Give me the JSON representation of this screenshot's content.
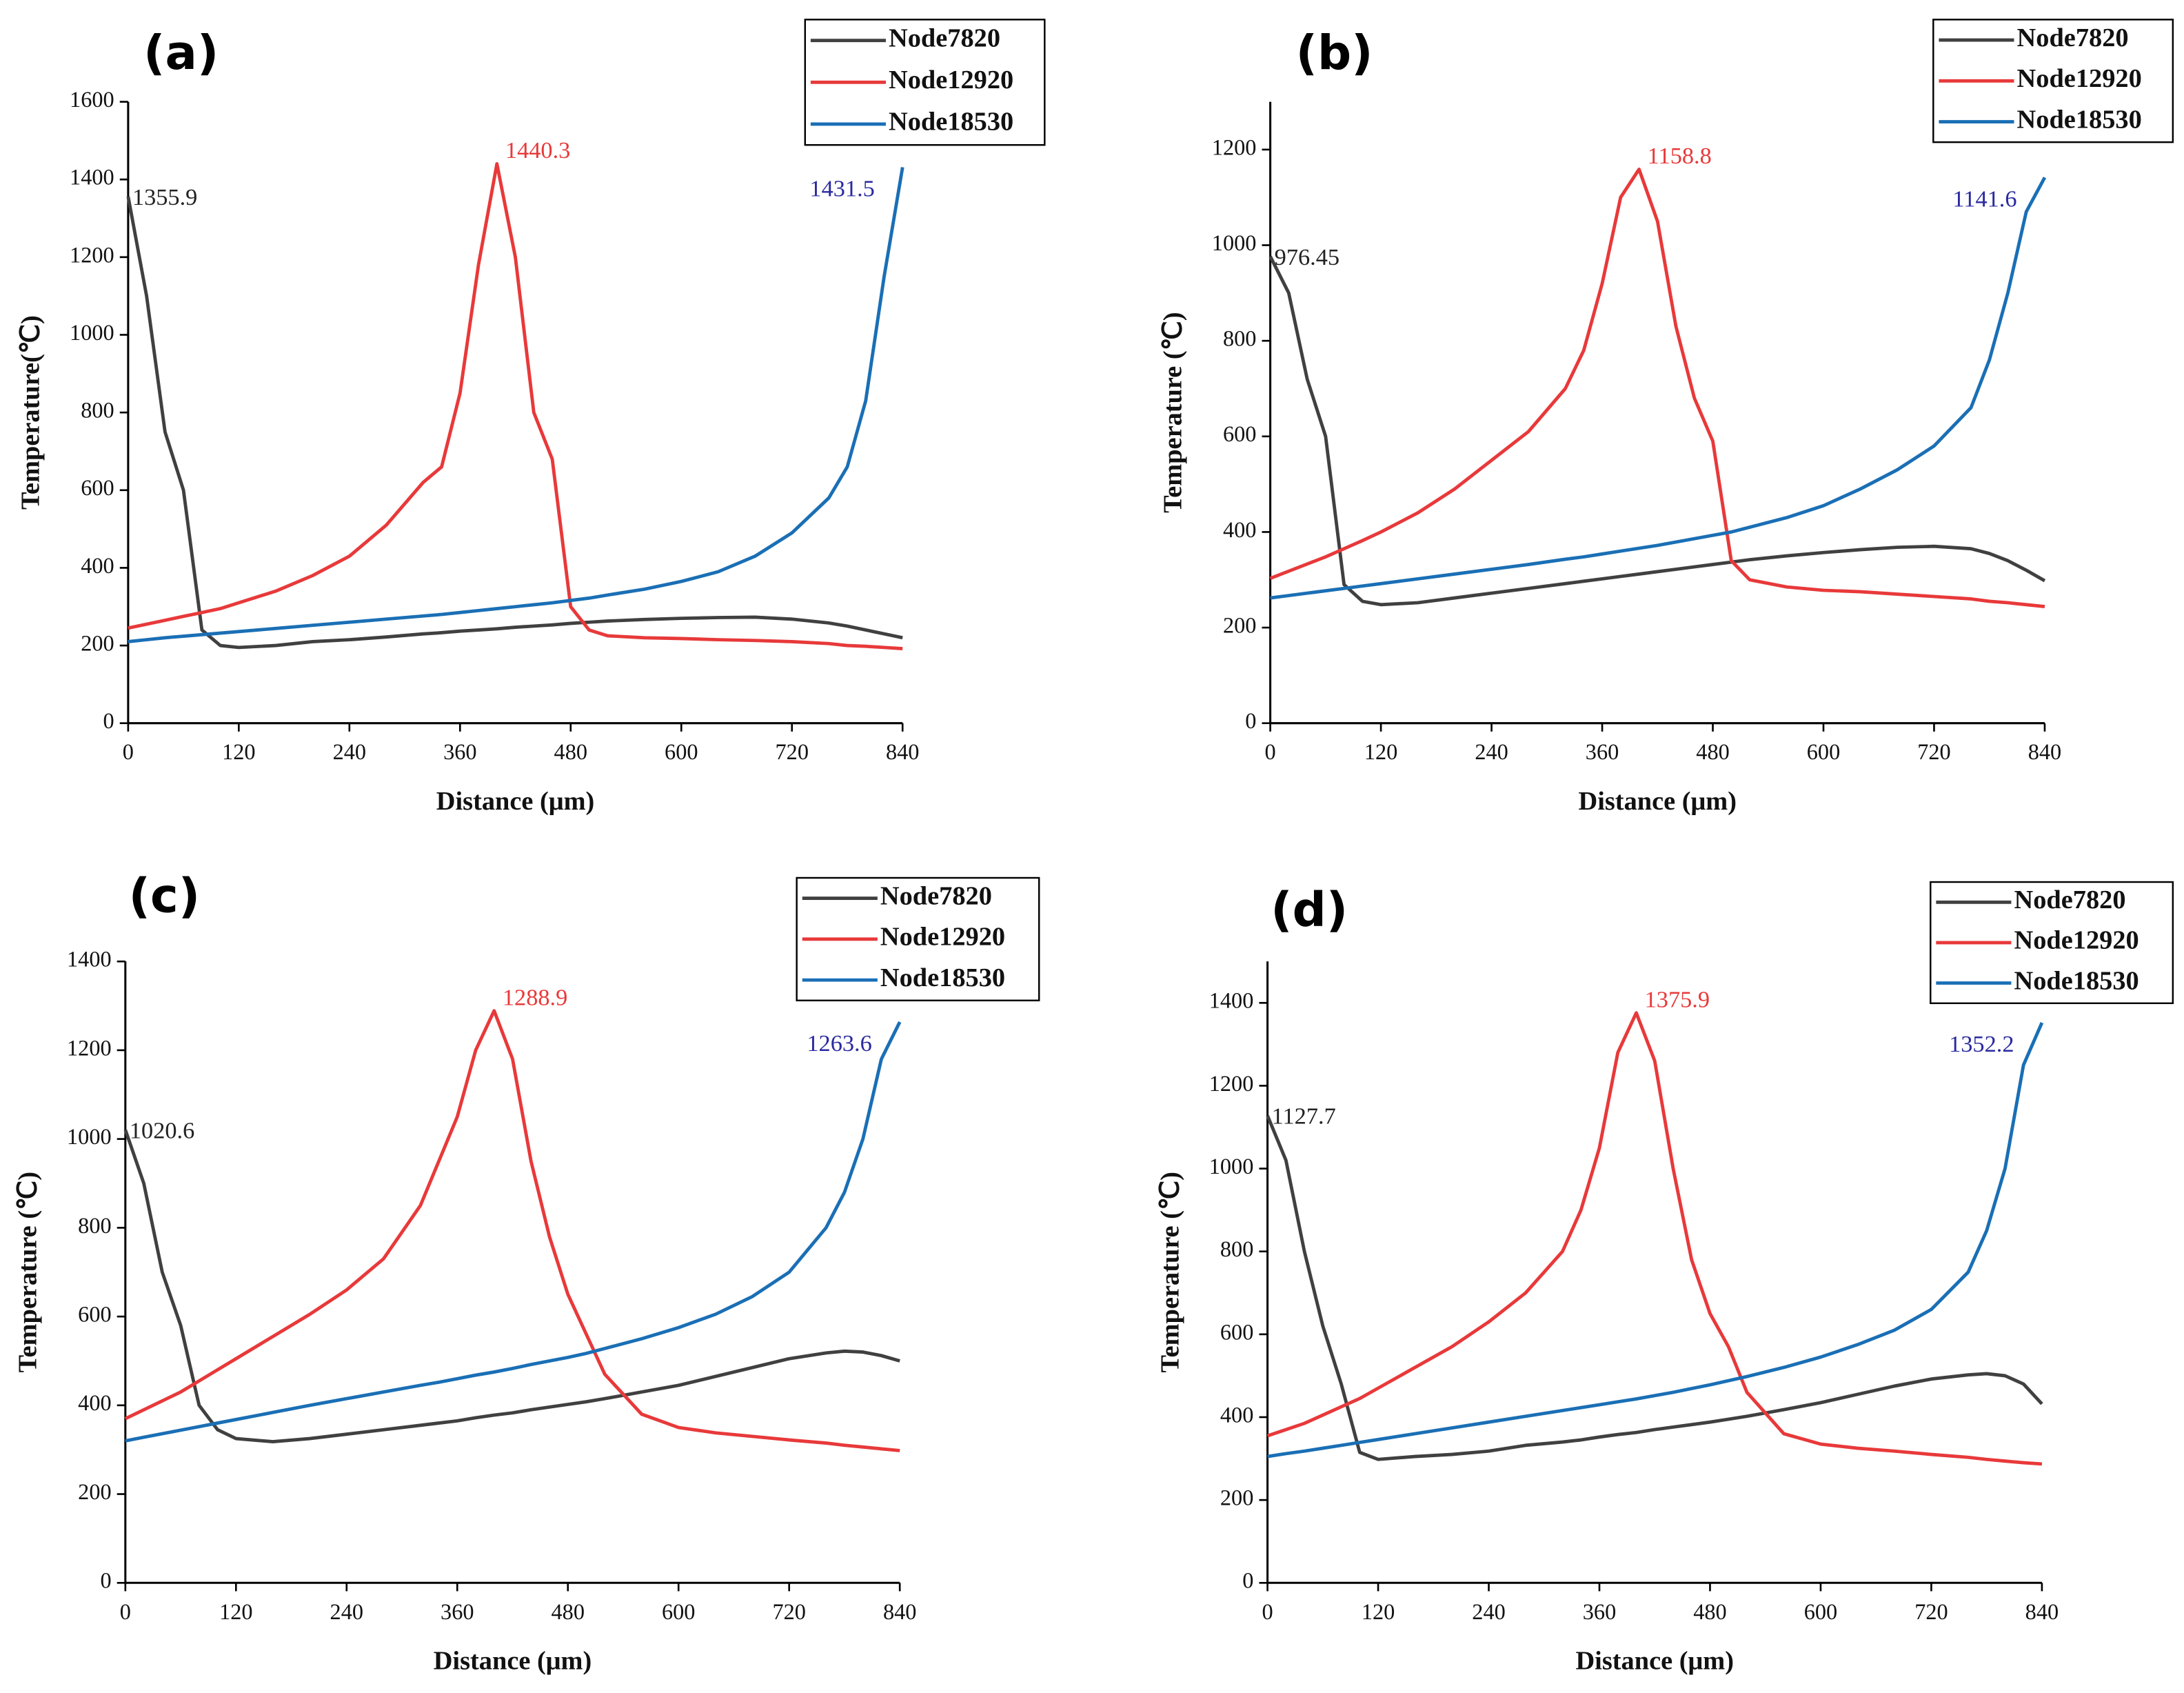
{
  "chart_data": [
    {
      "type": "line",
      "panel": "(a)",
      "xlabel": "Distance (μm)",
      "ylabel": "Temperature(℃)",
      "x": [
        0,
        20,
        40,
        60,
        80,
        100,
        120,
        160,
        200,
        240,
        280,
        320,
        340,
        360,
        380,
        400,
        420,
        440,
        460,
        480,
        500,
        520,
        560,
        600,
        640,
        680,
        720,
        760,
        780,
        800,
        820,
        840
      ],
      "xlim": [
        0,
        840
      ],
      "xticks": [
        0,
        120,
        240,
        360,
        480,
        600,
        720,
        840
      ],
      "ylim": [
        0,
        1600
      ],
      "yticks": [
        0,
        200,
        400,
        600,
        800,
        1000,
        1200,
        1400,
        1600
      ],
      "series": [
        {
          "name": "Node7820",
          "color": "#404040",
          "values": [
            1355.9,
            1100,
            750,
            600,
            240,
            200,
            195,
            200,
            210,
            215,
            222,
            230,
            233,
            237,
            240,
            243,
            247,
            250,
            253,
            257,
            260,
            263,
            267,
            270,
            272,
            273,
            268,
            258,
            250,
            240,
            230,
            220
          ]
        },
        {
          "name": "Node12920",
          "color": "#e8393a",
          "values": [
            245,
            255,
            265,
            275,
            285,
            295,
            310,
            340,
            380,
            430,
            510,
            620,
            660,
            850,
            1180,
            1440.3,
            1200,
            800,
            680,
            300,
            240,
            225,
            220,
            218,
            215,
            213,
            210,
            205,
            200,
            198,
            195,
            192
          ]
        },
        {
          "name": "Node18530",
          "color": "#1a6fb5",
          "values": [
            210,
            215,
            220,
            224,
            228,
            232,
            236,
            244,
            252,
            260,
            268,
            276,
            280,
            285,
            290,
            295,
            300,
            305,
            310,
            316,
            322,
            330,
            345,
            365,
            390,
            430,
            490,
            580,
            660,
            830,
            1150,
            1431.5
          ]
        }
      ],
      "annotations": [
        {
          "text": "1355.9",
          "series": "Node7820",
          "color": "#222222"
        },
        {
          "text": "1440.3",
          "series": "Node12920",
          "color": "#e8393a"
        },
        {
          "text": "1431.5",
          "series": "Node18530",
          "color": "#2a2aa0"
        }
      ]
    },
    {
      "type": "line",
      "panel": "(b)",
      "xlabel": "Distance (μm)",
      "ylabel": "Temperature (℃)",
      "x": [
        0,
        20,
        40,
        60,
        80,
        100,
        120,
        160,
        200,
        240,
        280,
        320,
        340,
        360,
        380,
        400,
        420,
        440,
        460,
        480,
        500,
        520,
        560,
        600,
        640,
        680,
        720,
        760,
        780,
        800,
        820,
        840
      ],
      "xlim": [
        0,
        840
      ],
      "xticks": [
        0,
        120,
        240,
        360,
        480,
        600,
        720,
        840
      ],
      "ylim": [
        0,
        1300
      ],
      "yticks": [
        0,
        200,
        400,
        600,
        800,
        1000,
        1200
      ],
      "series": [
        {
          "name": "Node7820",
          "color": "#404040",
          "values": [
            976.45,
            900,
            720,
            600,
            290,
            255,
            248,
            252,
            262,
            272,
            282,
            292,
            297,
            302,
            307,
            312,
            317,
            322,
            327,
            332,
            337,
            342,
            350,
            357,
            363,
            368,
            370,
            365,
            355,
            340,
            320,
            298
          ]
        },
        {
          "name": "Node12920",
          "color": "#e8393a",
          "values": [
            303,
            318,
            333,
            348,
            365,
            382,
            400,
            440,
            490,
            550,
            610,
            700,
            780,
            920,
            1100,
            1158.8,
            1050,
            830,
            680,
            590,
            340,
            300,
            285,
            278,
            275,
            270,
            265,
            260,
            255,
            252,
            248,
            244
          ]
        },
        {
          "name": "Node18530",
          "color": "#1a6fb5",
          "values": [
            262,
            267,
            272,
            277,
            282,
            287,
            292,
            302,
            312,
            322,
            332,
            343,
            348,
            354,
            360,
            366,
            372,
            379,
            386,
            393,
            400,
            410,
            430,
            455,
            490,
            530,
            580,
            660,
            760,
            900,
            1070,
            1141.6
          ]
        }
      ],
      "annotations": [
        {
          "text": "976.45",
          "series": "Node7820",
          "color": "#222222"
        },
        {
          "text": "1158.8",
          "series": "Node12920",
          "color": "#e8393a"
        },
        {
          "text": "1141.6",
          "series": "Node18530",
          "color": "#2a2aa0"
        }
      ]
    },
    {
      "type": "line",
      "panel": "(c)",
      "xlabel": "Distance (μm)",
      "ylabel": "Temperature (℃)",
      "x": [
        0,
        20,
        40,
        60,
        80,
        100,
        120,
        160,
        200,
        240,
        280,
        320,
        340,
        360,
        380,
        400,
        420,
        440,
        460,
        480,
        500,
        520,
        560,
        600,
        640,
        680,
        720,
        760,
        780,
        800,
        820,
        840
      ],
      "xlim": [
        0,
        840
      ],
      "xticks": [
        0,
        120,
        240,
        360,
        480,
        600,
        720,
        840
      ],
      "ylim": [
        0,
        1400
      ],
      "yticks": [
        0,
        200,
        400,
        600,
        800,
        1000,
        1200,
        1400
      ],
      "series": [
        {
          "name": "Node7820",
          "color": "#404040",
          "values": [
            1020.6,
            900,
            700,
            580,
            400,
            345,
            325,
            318,
            325,
            335,
            345,
            355,
            360,
            365,
            372,
            378,
            383,
            390,
            396,
            402,
            408,
            415,
            430,
            445,
            465,
            485,
            505,
            518,
            522,
            520,
            512,
            500
          ]
        },
        {
          "name": "Node12920",
          "color": "#e8393a",
          "values": [
            370,
            390,
            410,
            430,
            455,
            480,
            505,
            555,
            605,
            660,
            730,
            850,
            950,
            1050,
            1200,
            1288.9,
            1180,
            950,
            780,
            650,
            560,
            470,
            380,
            350,
            338,
            330,
            322,
            315,
            310,
            306,
            302,
            298
          ]
        },
        {
          "name": "Node18530",
          "color": "#1a6fb5",
          "values": [
            320,
            328,
            336,
            344,
            352,
            360,
            368,
            384,
            400,
            415,
            430,
            445,
            452,
            460,
            468,
            475,
            483,
            492,
            500,
            508,
            517,
            528,
            550,
            575,
            605,
            645,
            700,
            800,
            880,
            1000,
            1180,
            1263.6
          ]
        }
      ],
      "annotations": [
        {
          "text": "1020.6",
          "series": "Node7820",
          "color": "#222222"
        },
        {
          "text": "1288.9",
          "series": "Node12920",
          "color": "#e8393a"
        },
        {
          "text": "1263.6",
          "series": "Node18530",
          "color": "#2a2aa0"
        }
      ]
    },
    {
      "type": "line",
      "panel": "(d)",
      "xlabel": "Distance (μm)",
      "ylabel": "Temperature (℃)",
      "x": [
        0,
        20,
        40,
        60,
        80,
        100,
        120,
        160,
        200,
        240,
        280,
        320,
        340,
        360,
        380,
        400,
        420,
        440,
        460,
        480,
        500,
        520,
        560,
        600,
        640,
        680,
        720,
        760,
        780,
        800,
        820,
        840
      ],
      "xlim": [
        0,
        840
      ],
      "xticks": [
        0,
        120,
        240,
        360,
        480,
        600,
        720,
        840
      ],
      "ylim": [
        0,
        1500
      ],
      "yticks": [
        0,
        200,
        400,
        600,
        800,
        1000,
        1200,
        1400
      ],
      "series": [
        {
          "name": "Node7820",
          "color": "#404040",
          "values": [
            1127.7,
            1020,
            800,
            620,
            480,
            315,
            298,
            305,
            310,
            318,
            332,
            340,
            345,
            352,
            358,
            363,
            370,
            376,
            382,
            388,
            395,
            402,
            418,
            435,
            455,
            475,
            492,
            502,
            505,
            500,
            480,
            432
          ]
        },
        {
          "name": "Node12920",
          "color": "#e8393a",
          "values": [
            355,
            370,
            385,
            405,
            425,
            445,
            470,
            520,
            570,
            630,
            700,
            800,
            900,
            1050,
            1280,
            1375.9,
            1260,
            1000,
            780,
            650,
            570,
            460,
            360,
            335,
            325,
            318,
            310,
            303,
            298,
            294,
            290,
            287
          ]
        },
        {
          "name": "Node18530",
          "color": "#1a6fb5",
          "values": [
            305,
            312,
            318,
            325,
            332,
            339,
            346,
            360,
            374,
            388,
            402,
            416,
            423,
            430,
            437,
            444,
            452,
            460,
            469,
            478,
            488,
            498,
            520,
            545,
            575,
            610,
            660,
            750,
            850,
            1000,
            1250,
            1352.2
          ]
        }
      ],
      "annotations": [
        {
          "text": "1127.7",
          "series": "Node7820",
          "color": "#222222"
        },
        {
          "text": "1375.9",
          "series": "Node12920",
          "color": "#e8393a"
        },
        {
          "text": "1352.2",
          "series": "Node18530",
          "color": "#2a2aa0"
        }
      ]
    }
  ]
}
